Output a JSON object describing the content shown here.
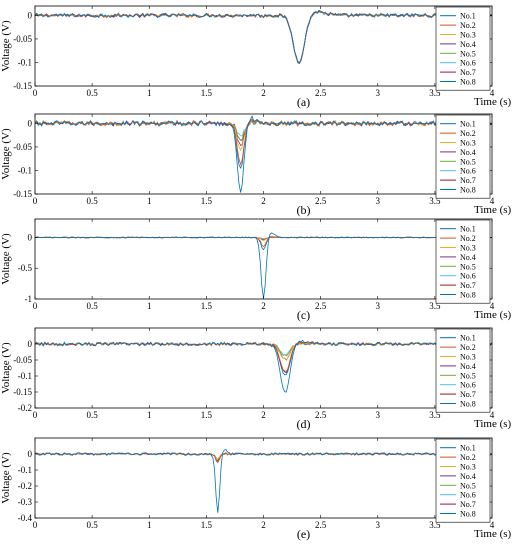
{
  "figure": {
    "xlabel": "Time (s)",
    "ylabel": "Voltage (V)",
    "legend_position": "top-right",
    "series_names": [
      "No.1",
      "No.2",
      "No.3",
      "No.4",
      "No.5",
      "No.6",
      "No.7",
      "No.8"
    ],
    "series_colors": [
      "#0072BD",
      "#D95319",
      "#EDB120",
      "#7E2F8E",
      "#77AC30",
      "#4DBEEE",
      "#A2142F",
      "#0072BD"
    ]
  },
  "chart_data": [
    {
      "type": "line",
      "panel_label": "(a)",
      "xlim": [
        0,
        4
      ],
      "ylim": [
        -0.15,
        0.02
      ],
      "xticks": [
        0,
        0.5,
        1,
        1.5,
        2,
        2.5,
        3,
        3.5,
        4
      ],
      "yticks": [
        0,
        -0.05,
        -0.1,
        -0.15
      ],
      "ytick_labels": [
        "0",
        "-0.05",
        "-0.1",
        "-0.15"
      ],
      "noise_amplitude": 0.004,
      "grid": false,
      "dip": {
        "x": 2.31,
        "width": 0.07
      },
      "series": [
        {
          "name": "No.1",
          "min": -0.1
        },
        {
          "name": "No.2",
          "min": -0.1
        },
        {
          "name": "No.3",
          "min": -0.1
        },
        {
          "name": "No.4",
          "min": -0.1
        },
        {
          "name": "No.5",
          "min": -0.1
        },
        {
          "name": "No.6",
          "min": -0.1
        },
        {
          "name": "No.7",
          "min": -0.1
        },
        {
          "name": "No.8",
          "min": -0.1
        }
      ]
    },
    {
      "type": "line",
      "panel_label": "(b)",
      "xlim": [
        0,
        4
      ],
      "ylim": [
        -0.15,
        0.02
      ],
      "xticks": [
        0,
        0.5,
        1,
        1.5,
        2,
        2.5,
        3,
        3.5,
        4
      ],
      "yticks": [
        0,
        -0.05,
        -0.1,
        -0.15
      ],
      "ytick_labels": [
        "0",
        "-0.05",
        "-0.1",
        "-0.15"
      ],
      "noise_amplitude": 0.005,
      "grid": false,
      "dip": {
        "x": 1.8,
        "width": 0.04
      },
      "series": [
        {
          "name": "No.1",
          "min": -0.15
        },
        {
          "name": "No.2",
          "min": -0.09
        },
        {
          "name": "No.3",
          "min": -0.06
        },
        {
          "name": "No.4",
          "min": -0.05
        },
        {
          "name": "No.5",
          "min": -0.04
        },
        {
          "name": "No.6",
          "min": -0.03
        },
        {
          "name": "No.7",
          "min": -0.04
        },
        {
          "name": "No.8",
          "min": -0.1
        }
      ]
    },
    {
      "type": "line",
      "panel_label": "(c)",
      "xlim": [
        0,
        4
      ],
      "ylim": [
        -1,
        0.3
      ],
      "xticks": [
        0,
        0.5,
        1,
        1.5,
        2,
        2.5,
        3,
        3.5,
        4
      ],
      "yticks": [
        0,
        -0.5,
        -1
      ],
      "ytick_labels": [
        "0",
        "-0.5",
        "-1"
      ],
      "noise_amplitude": 0.006,
      "grid": false,
      "dip": {
        "x": 2.0,
        "width": 0.03
      },
      "series": [
        {
          "name": "No.1",
          "min": -1.0
        },
        {
          "name": "No.2",
          "min": -0.15
        },
        {
          "name": "No.3",
          "min": -0.05
        },
        {
          "name": "No.4",
          "min": -0.04
        },
        {
          "name": "No.5",
          "min": -0.03
        },
        {
          "name": "No.6",
          "min": -0.02
        },
        {
          "name": "No.7",
          "min": -0.03
        },
        {
          "name": "No.8",
          "min": -0.2
        }
      ]
    },
    {
      "type": "line",
      "panel_label": "(d)",
      "xlim": [
        0,
        4
      ],
      "ylim": [
        -0.2,
        0.05
      ],
      "xticks": [
        0,
        0.5,
        1,
        1.5,
        2,
        2.5,
        3,
        3.5,
        4
      ],
      "yticks": [
        0,
        -0.05,
        -0.1,
        -0.15,
        -0.2
      ],
      "ytick_labels": [
        "0",
        "-0.05",
        "-0.1",
        "-0.15",
        "-0.2"
      ],
      "noise_amplitude": 0.005,
      "grid": false,
      "dip": {
        "x": 2.19,
        "width": 0.06
      },
      "series": [
        {
          "name": "No.1",
          "min": -0.155
        },
        {
          "name": "No.2",
          "min": -0.09
        },
        {
          "name": "No.3",
          "min": -0.05
        },
        {
          "name": "No.4",
          "min": -0.05
        },
        {
          "name": "No.5",
          "min": -0.04
        },
        {
          "name": "No.6",
          "min": -0.035
        },
        {
          "name": "No.7",
          "min": -0.09
        },
        {
          "name": "No.8",
          "min": -0.1
        }
      ]
    },
    {
      "type": "line",
      "panel_label": "(e)",
      "xlim": [
        0,
        4
      ],
      "ylim": [
        -0.4,
        0.1
      ],
      "xticks": [
        0,
        0.5,
        1,
        1.5,
        2,
        2.5,
        3,
        3.5,
        4
      ],
      "yticks": [
        0,
        -0.1,
        -0.2,
        -0.3,
        -0.4
      ],
      "ytick_labels": [
        "0",
        "-0.1",
        "-0.2",
        "-0.3",
        "-0.4"
      ],
      "noise_amplitude": 0.007,
      "grid": false,
      "dip": {
        "x": 1.6,
        "width": 0.025
      },
      "series": [
        {
          "name": "No.1",
          "min": -0.37
        },
        {
          "name": "No.2",
          "min": -0.05
        },
        {
          "name": "No.3",
          "min": -0.03
        },
        {
          "name": "No.4",
          "min": -0.03
        },
        {
          "name": "No.5",
          "min": -0.03
        },
        {
          "name": "No.6",
          "min": -0.03
        },
        {
          "name": "No.7",
          "min": -0.05
        },
        {
          "name": "No.8",
          "min": -0.04
        }
      ]
    }
  ]
}
